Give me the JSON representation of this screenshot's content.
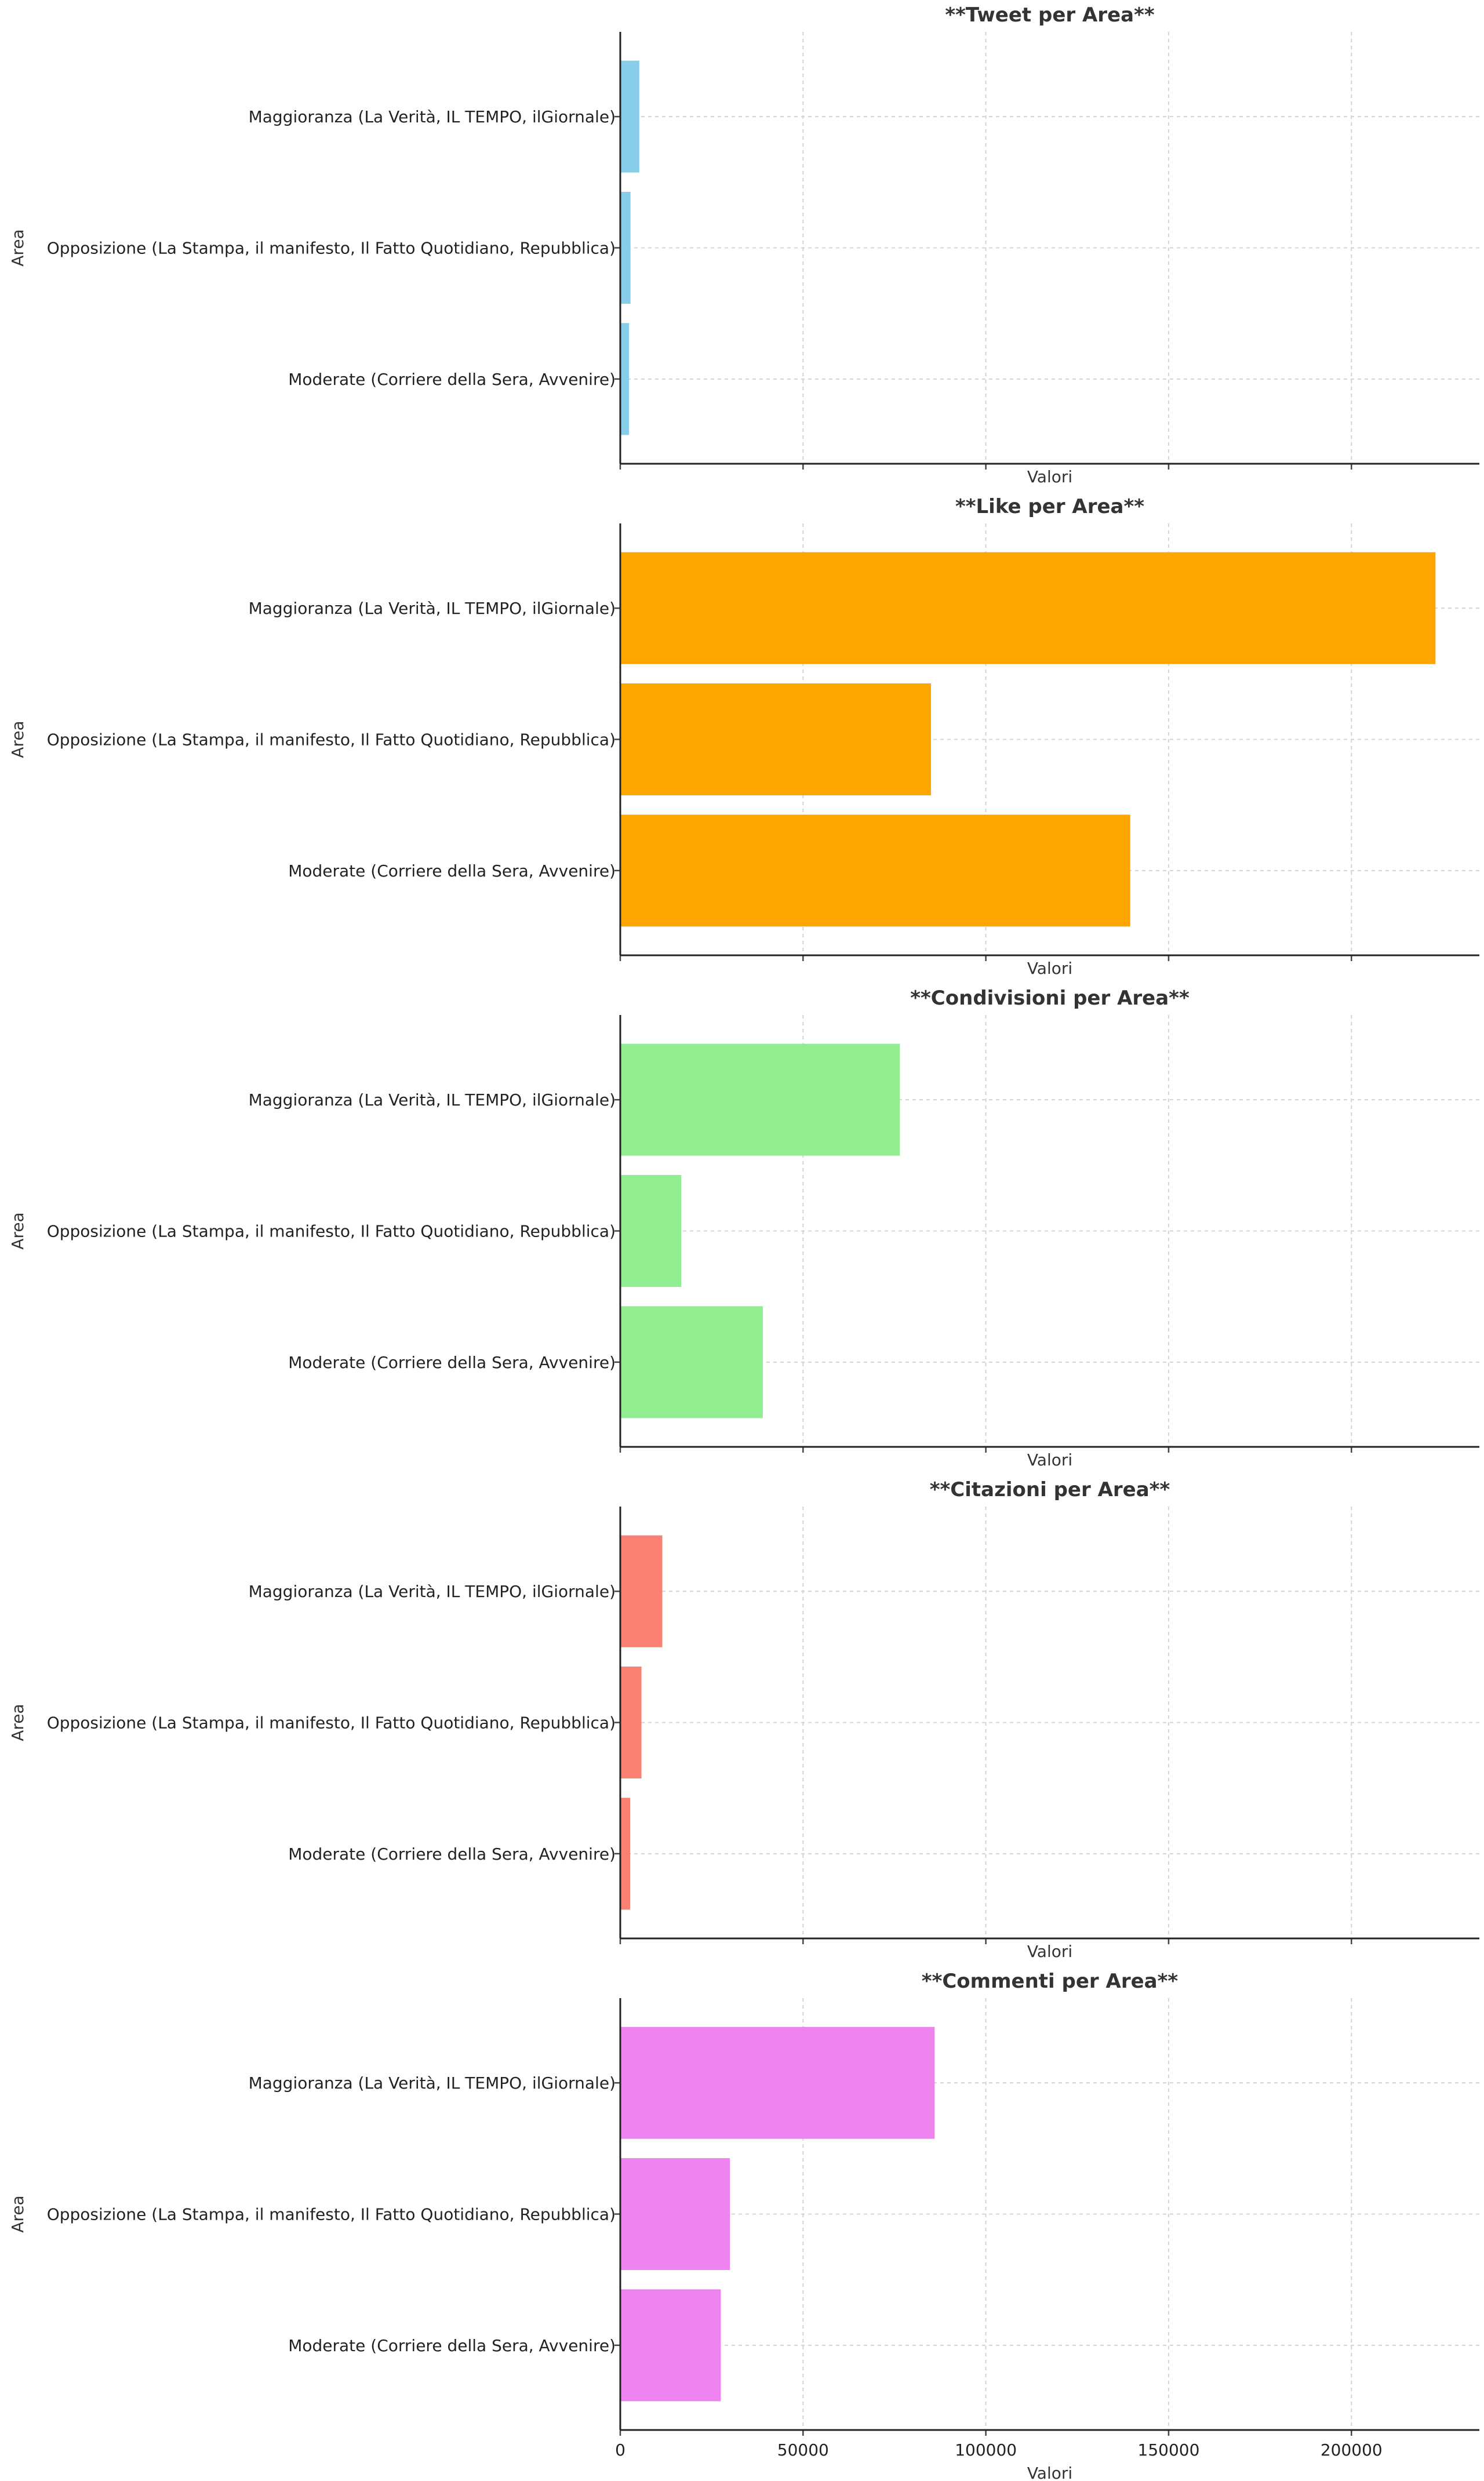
{
  "chart_data": {
    "type": "bar",
    "orientation": "horizontal",
    "xlim": [
      0,
      235000
    ],
    "x_ticks": [
      0,
      50000,
      100000,
      150000,
      200000
    ],
    "x_tick_labels": [
      "0",
      "50000",
      "100000",
      "150000",
      "200000"
    ],
    "grid": true,
    "categories": [
      "Maggioranza (La Verità, IL TEMPO, ilGiornale)",
      "Opposizione (La Stampa, il manifesto, Il Fatto Quotidiano, Repubblica)",
      "Moderate (Corriere della Sera, Avvenire)"
    ],
    "panels": [
      {
        "title": "**Tweet per Area**",
        "xlabel": "Valori",
        "ylabel": "Area",
        "color": "#87CEEB",
        "values": [
          5200,
          2800,
          2400
        ]
      },
      {
        "title": "**Like per Area**",
        "xlabel": "Valori",
        "ylabel": "Area",
        "color": "#FFA500",
        "values": [
          223000,
          85000,
          139500
        ]
      },
      {
        "title": "**Condivisioni per Area**",
        "xlabel": "Valori",
        "ylabel": "Area",
        "color": "#90EE90",
        "values": [
          76500,
          16700,
          39000
        ]
      },
      {
        "title": "**Citazioni per Area**",
        "xlabel": "Valori",
        "ylabel": "Area",
        "color": "#FA8072",
        "values": [
          11500,
          5800,
          2700
        ]
      },
      {
        "title": "**Commenti per Area**",
        "xlabel": "Valori",
        "ylabel": "Area",
        "color": "#EE82EE",
        "values": [
          86000,
          30000,
          27500
        ]
      }
    ]
  }
}
